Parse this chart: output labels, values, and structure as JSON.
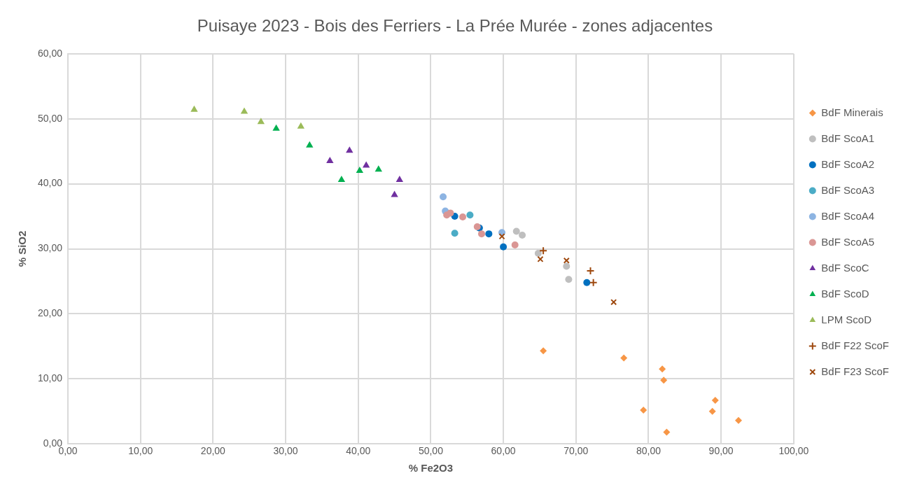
{
  "chart_data": {
    "type": "scatter",
    "title": "Puisaye 2023 - Bois des Ferriers - La Prée Murée - zones adjacentes",
    "xlabel": "% Fe2O3",
    "ylabel": "% SiO2",
    "xlim": [
      0,
      100
    ],
    "ylim": [
      0,
      60
    ],
    "xticks": [
      {
        "value": 0,
        "label": "0,00"
      },
      {
        "value": 10,
        "label": "10,00"
      },
      {
        "value": 20,
        "label": "20,00"
      },
      {
        "value": 30,
        "label": "30,00"
      },
      {
        "value": 40,
        "label": "40,00"
      },
      {
        "value": 50,
        "label": "50,00"
      },
      {
        "value": 60,
        "label": "60,00"
      },
      {
        "value": 70,
        "label": "70,00"
      },
      {
        "value": 80,
        "label": "80,00"
      },
      {
        "value": 90,
        "label": "90,00"
      },
      {
        "value": 100,
        "label": "100,00"
      }
    ],
    "yticks": [
      {
        "value": 0,
        "label": "0,00"
      },
      {
        "value": 10,
        "label": "10,00"
      },
      {
        "value": 20,
        "label": "20,00"
      },
      {
        "value": 30,
        "label": "30,00"
      },
      {
        "value": 40,
        "label": "40,00"
      },
      {
        "value": 50,
        "label": "50,00"
      },
      {
        "value": 60,
        "label": "60,00"
      }
    ],
    "grid": true,
    "legend": "right",
    "series": [
      {
        "name": "BdF Minerais",
        "color": "#f79646",
        "marker": "diamond",
        "x": [
          65.5,
          76.6,
          81.9,
          82.1,
          79.3,
          89.2,
          88.8,
          92.4,
          82.5
        ],
        "values": [
          14.3,
          13.2,
          11.5,
          9.8,
          5.2,
          6.7,
          5.0,
          3.6,
          1.8
        ]
      },
      {
        "name": "BdF ScoA1",
        "color": "#bfbfbf",
        "marker": "circle",
        "x": [
          61.8,
          62.6,
          64.8,
          68.7,
          69.0
        ],
        "values": [
          32.7,
          32.1,
          29.3,
          27.3,
          25.3
        ]
      },
      {
        "name": "BdF ScoA2",
        "color": "#0070c0",
        "marker": "circle",
        "x": [
          53.3,
          56.7,
          58.0,
          60.0,
          71.5
        ],
        "values": [
          35.0,
          33.2,
          32.3,
          30.3,
          24.8
        ]
      },
      {
        "name": "BdF ScoA3",
        "color": "#4bacc6",
        "marker": "circle",
        "x": [
          55.4,
          53.3
        ],
        "values": [
          35.2,
          32.4
        ]
      },
      {
        "name": "BdF ScoA4",
        "color": "#8db4e2",
        "marker": "circle",
        "x": [
          51.7,
          52.0,
          59.8
        ],
        "values": [
          38.0,
          35.8,
          32.5
        ]
      },
      {
        "name": "BdF ScoA5",
        "color": "#da9694",
        "marker": "circle",
        "x": [
          52.2,
          52.7,
          54.4,
          56.4,
          57.0,
          61.6
        ],
        "values": [
          35.2,
          35.5,
          34.9,
          33.4,
          32.3,
          30.6
        ]
      },
      {
        "name": "BdF ScoC",
        "color": "#7030a0",
        "marker": "triangle",
        "x": [
          36.1,
          38.8,
          41.1,
          45.7,
          45.0
        ],
        "values": [
          43.5,
          45.1,
          42.8,
          40.6,
          38.3
        ]
      },
      {
        "name": "BdF ScoD",
        "color": "#00b050",
        "marker": "triangle",
        "x": [
          28.7,
          33.3,
          37.7,
          40.2,
          42.8
        ],
        "values": [
          48.5,
          45.9,
          40.6,
          42.0,
          42.2
        ]
      },
      {
        "name": "LPM ScoD",
        "color": "#9bbb59",
        "marker": "triangle",
        "x": [
          17.4,
          24.3,
          26.6,
          32.1
        ],
        "values": [
          51.4,
          51.1,
          49.5,
          48.8
        ]
      },
      {
        "name": "BdF F22 ScoF",
        "color": "#9e480e",
        "marker": "plus",
        "x": [
          65.5,
          72.0,
          72.4
        ],
        "values": [
          29.7,
          26.6,
          24.8
        ]
      },
      {
        "name": "BdF F23 ScoF",
        "color": "#9e480e",
        "marker": "cross",
        "x": [
          59.8,
          65.1,
          68.7,
          75.2
        ],
        "values": [
          31.9,
          28.4,
          28.2,
          21.8
        ]
      }
    ]
  }
}
